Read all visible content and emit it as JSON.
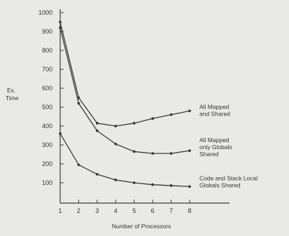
{
  "chart_data": {
    "type": "line",
    "title": "",
    "xlabel": "Number of Processors",
    "ylabel": [
      "Ex.",
      "Time"
    ],
    "x": [
      1,
      2,
      3,
      4,
      5,
      6,
      7,
      8
    ],
    "xlim": [
      1,
      8
    ],
    "ylim": [
      0,
      1000
    ],
    "y_ticks": [
      100,
      200,
      300,
      400,
      500,
      600,
      700,
      800,
      900,
      1000
    ],
    "x_ticks": [
      1,
      2,
      3,
      4,
      5,
      6,
      7,
      8
    ],
    "grid": false,
    "legend": "inline labels at right end of each line",
    "series": [
      {
        "name": "All Mapped and Shared",
        "label_lines": [
          "All Mapped",
          "and Shared"
        ],
        "values": [
          950,
          550,
          415,
          400,
          415,
          440,
          460,
          480
        ]
      },
      {
        "name": "All Mapped only Globals Shared",
        "label_lines": [
          "All Mapped",
          "only Globals",
          "Shared"
        ],
        "values": [
          920,
          520,
          375,
          305,
          265,
          255,
          255,
          270
        ]
      },
      {
        "name": "Code and Stack Local Globals Shared",
        "label_lines": [
          "Code and Stack Local",
          "Globals Shared"
        ],
        "values": [
          360,
          195,
          145,
          115,
          100,
          90,
          85,
          80
        ]
      }
    ]
  },
  "colors": {
    "background": "#e9eae5",
    "line": "#3a3a3a"
  }
}
